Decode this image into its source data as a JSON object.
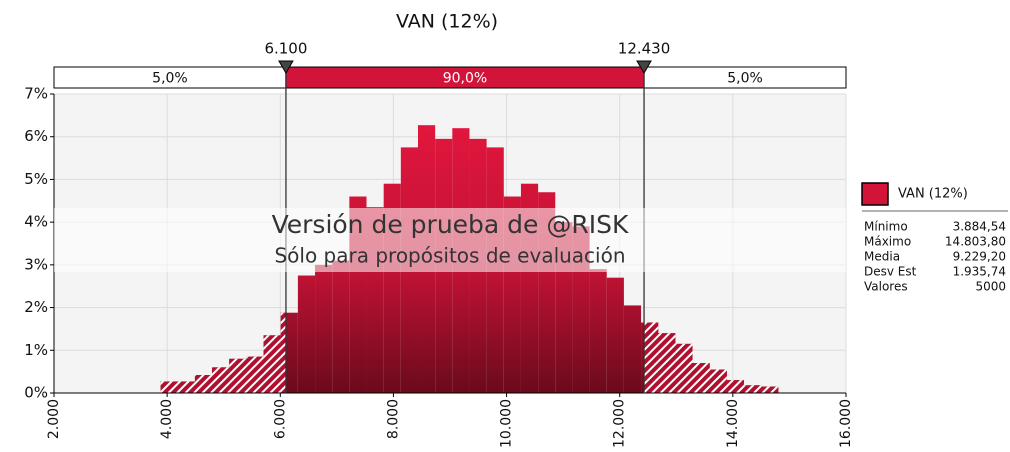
{
  "chart_data": {
    "type": "histogram",
    "title": "VAN (12%)",
    "color": "#d2143a",
    "bins": [
      3884.54,
      4187.85,
      4491.17,
      4794.48,
      5097.79,
      5401.1,
      5704.42,
      6007.73,
      6311.04,
      6614.36,
      6917.67,
      7220.98,
      7524.29,
      7827.61,
      8130.92,
      8434.23,
      8737.55,
      9040.86,
      9344.17,
      9647.48,
      9950.8,
      10254.11,
      10557.42,
      10860.74,
      11164.05,
      11467.36,
      11770.67,
      12073.99,
      12377.3,
      12680.61,
      12983.93,
      13287.24,
      13590.55,
      13893.86,
      14197.18,
      14500.49,
      14803.8
    ],
    "values": [
      0.27,
      0.27,
      0.42,
      0.6,
      0.8,
      0.85,
      1.35,
      1.88,
      2.75,
      3.0,
      3.1,
      4.6,
      4.35,
      4.9,
      5.75,
      6.27,
      5.95,
      6.2,
      5.95,
      5.75,
      4.6,
      4.9,
      4.7,
      4.0,
      3.9,
      2.9,
      2.7,
      2.05,
      1.65,
      1.4,
      1.15,
      0.7,
      0.55,
      0.3,
      0.18,
      0.15
    ],
    "xlim": [
      2000,
      16000
    ],
    "xticks": [
      {
        "value": 2000,
        "label": "2.000"
      },
      {
        "value": 4000,
        "label": "4.000"
      },
      {
        "value": 6000,
        "label": "6.000"
      },
      {
        "value": 8000,
        "label": "8.000"
      },
      {
        "value": 10000,
        "label": "10.000"
      },
      {
        "value": 12000,
        "label": "12.000"
      },
      {
        "value": 14000,
        "label": "14.000"
      },
      {
        "value": 16000,
        "label": "16.000"
      }
    ],
    "ylim": [
      0,
      7
    ],
    "yticks": [
      {
        "value": 0,
        "label": "0%"
      },
      {
        "value": 1,
        "label": "1%"
      },
      {
        "value": 2,
        "label": "2%"
      },
      {
        "value": 3,
        "label": "3%"
      },
      {
        "value": 4,
        "label": "4%"
      },
      {
        "value": 5,
        "label": "5%"
      },
      {
        "value": 6,
        "label": "6%"
      },
      {
        "value": 7,
        "label": "7%"
      }
    ],
    "grid": true,
    "delimiters": [
      {
        "value": 6100,
        "label": "6.100"
      },
      {
        "value": 12430,
        "label": "12.430"
      }
    ],
    "regions": [
      {
        "value": 5.0,
        "label": "5,0%"
      },
      {
        "value": 90.0,
        "label": "90,0%"
      },
      {
        "value": 5.0,
        "label": "5,0%"
      }
    ],
    "watermark": [
      "Versión de prueba de @RISK",
      "Sólo para propósitos de evaluación"
    ],
    "legend": {
      "name": "VAN (12%)",
      "position": "right"
    },
    "stats": [
      {
        "name": "Mínimo",
        "value": 3884.54,
        "value_label": "3.884,54"
      },
      {
        "name": "Máximo",
        "value": 14803.8,
        "value_label": "14.803,80"
      },
      {
        "name": "Media",
        "value": 9229.2,
        "value_label": "9.229,20"
      },
      {
        "name": "Desv Est",
        "value": 1935.74,
        "value_label": "1.935,74"
      },
      {
        "name": "Valores",
        "value": 5000,
        "value_label": "5000"
      }
    ]
  }
}
